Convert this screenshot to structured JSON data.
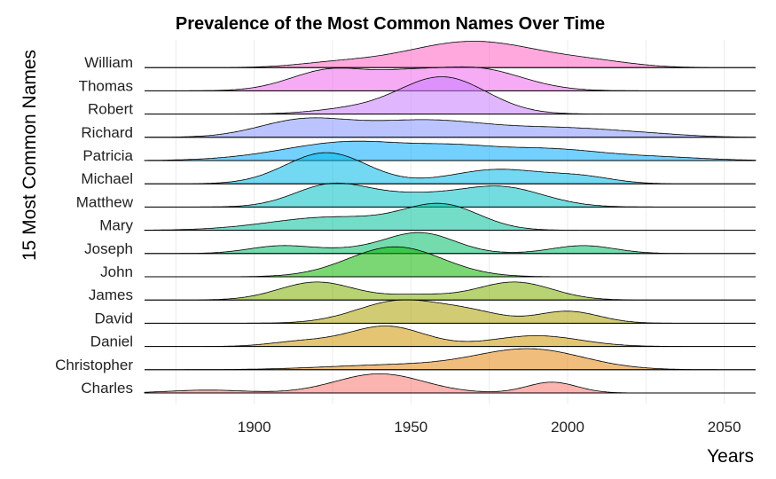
{
  "chart_data": {
    "type": "ridgeline",
    "title": "Prevalence of the Most Common Names Over Time",
    "xlabel": "Years",
    "ylabel": "15 Most Common Names",
    "xlim": [
      1865,
      2060
    ],
    "x_ticks": [
      1900,
      1950,
      2000,
      2050
    ],
    "grid": true,
    "series": [
      {
        "name": "Charles",
        "color": "#F8766D",
        "baseline_range": [
          1865,
          2060
        ],
        "peaks": [
          [
            1940,
            14,
            0.8
          ],
          [
            1995,
            8,
            0.45
          ],
          [
            1885,
            12,
            0.12
          ]
        ]
      },
      {
        "name": "Christopher",
        "color": "#E68613",
        "baseline_range": [
          1865,
          2060
        ],
        "peaks": [
          [
            1988,
            17,
            0.85
          ],
          [
            1945,
            22,
            0.2
          ]
        ]
      },
      {
        "name": "Daniel",
        "color": "#CD9600",
        "baseline_range": [
          1865,
          2060
        ],
        "peaks": [
          [
            1942,
            12,
            0.85
          ],
          [
            1990,
            14,
            0.45
          ],
          [
            1915,
            10,
            0.2
          ]
        ]
      },
      {
        "name": "David",
        "color": "#ABA300",
        "baseline_range": [
          1865,
          2060
        ],
        "peaks": [
          [
            1947,
            14,
            0.95
          ],
          [
            2000,
            10,
            0.5
          ],
          [
            1970,
            10,
            0.35
          ]
        ]
      },
      {
        "name": "James",
        "color": "#7CAE00",
        "baseline_range": [
          1865,
          2060
        ],
        "peaks": [
          [
            1920,
            12,
            0.75
          ],
          [
            1983,
            12,
            0.75
          ],
          [
            1952,
            10,
            0.2
          ]
        ]
      },
      {
        "name": "John",
        "color": "#0CB702",
        "baseline_range": [
          1865,
          2060
        ],
        "peaks": [
          [
            1945,
            15,
            1.25
          ]
        ]
      },
      {
        "name": "Joseph",
        "color": "#00BE67",
        "baseline_range": [
          1865,
          2060
        ],
        "peaks": [
          [
            1908,
            10,
            0.3
          ],
          [
            1953,
            11,
            0.85
          ],
          [
            2005,
            10,
            0.33
          ],
          [
            1930,
            12,
            0.15
          ]
        ]
      },
      {
        "name": "Mary",
        "color": "#00C19A",
        "baseline_range": [
          1865,
          2060
        ],
        "peaks": [
          [
            1960,
            12,
            1.0
          ],
          [
            1925,
            20,
            0.55
          ]
        ]
      },
      {
        "name": "Matthew",
        "color": "#00BFC4",
        "baseline_range": [
          1865,
          2060
        ],
        "peaks": [
          [
            1925,
            12,
            0.95
          ],
          [
            1978,
            14,
            0.85
          ],
          [
            1950,
            12,
            0.4
          ]
        ]
      },
      {
        "name": "Michael",
        "color": "#00B8E7",
        "baseline_range": [
          1865,
          2060
        ],
        "peaks": [
          [
            1923,
            13,
            1.3
          ],
          [
            1978,
            15,
            0.6
          ],
          [
            2005,
            10,
            0.25
          ]
        ]
      },
      {
        "name": "Patricia",
        "color": "#00A9FF",
        "baseline_range": [
          1865,
          2060
        ],
        "peaks": [
          [
            1932,
            22,
            0.8
          ],
          [
            1993,
            18,
            0.48
          ],
          [
            1965,
            12,
            0.28
          ],
          [
            2030,
            15,
            0.12
          ]
        ]
      },
      {
        "name": "Richard",
        "color": "#8494FF",
        "baseline_range": [
          1865,
          2060
        ],
        "peaks": [
          [
            1915,
            14,
            0.65
          ],
          [
            1955,
            22,
            0.72
          ],
          [
            2000,
            16,
            0.3
          ],
          [
            2025,
            14,
            0.12
          ]
        ]
      },
      {
        "name": "Robert",
        "color": "#C77CFF",
        "baseline_range": [
          1865,
          2060
        ],
        "peaks": [
          [
            1960,
            14,
            1.55
          ],
          [
            1930,
            12,
            0.18
          ]
        ]
      },
      {
        "name": "Thomas",
        "color": "#ED68ED",
        "baseline_range": [
          1865,
          2060
        ],
        "peaks": [
          [
            1925,
            13,
            0.9
          ],
          [
            1970,
            15,
            0.95
          ],
          [
            1948,
            10,
            0.4
          ]
        ]
      },
      {
        "name": "William",
        "color": "#FF61C3",
        "baseline_range": [
          1865,
          2060
        ],
        "peaks": [
          [
            1970,
            22,
            1.1
          ],
          [
            1925,
            12,
            0.15
          ],
          [
            2010,
            12,
            0.15
          ]
        ]
      }
    ]
  }
}
